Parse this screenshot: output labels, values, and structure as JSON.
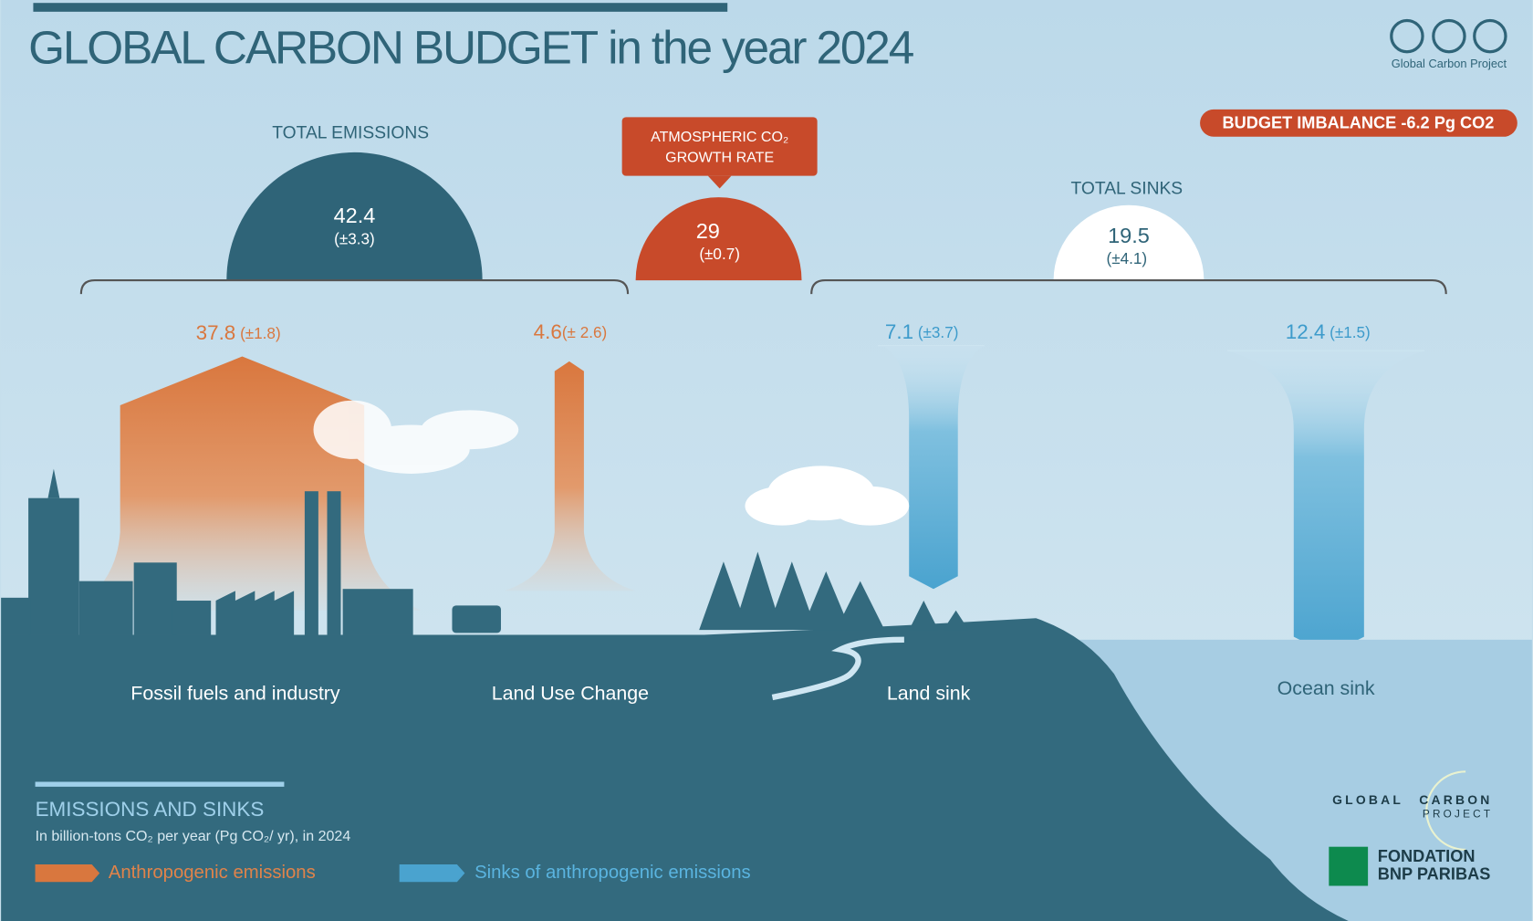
{
  "header": {
    "title_main": "GLOBAL CARBON BUDGET",
    "title_rest": "in the year 2024",
    "credit": "Global Carbon Project"
  },
  "budget_imbalance": "BUDGET IMBALANCE -6.2 Pg CO2",
  "totals": {
    "emissions": {
      "label": "TOTAL EMISSIONS",
      "value": 42.4,
      "uncertainty": "(±3.3)"
    },
    "atmospheric": {
      "label_line1": "ATMOSPHERIC CO₂",
      "label_line2": "GROWTH RATE",
      "value": 29,
      "uncertainty": "(±0.7)"
    },
    "sinks": {
      "label": "TOTAL SINKS",
      "value": 19.5,
      "uncertainty": "(±4.1)"
    }
  },
  "flows": [
    {
      "value": 37.8,
      "uncertainty": "(±1.8)",
      "label": "Fossil fuels and industry"
    },
    {
      "value": 4.6,
      "uncertainty": "(± 2.6)",
      "label": "Land Use Change"
    },
    {
      "value": 7.1,
      "uncertainty": "(±3.7)",
      "label": "Land sink"
    },
    {
      "value": 12.4,
      "uncertainty": "(±1.5)",
      "label": "Ocean sink"
    }
  ],
  "legend": {
    "title": "EMISSIONS AND SINKS",
    "subtitle": "In billion-tons CO₂ per year (Pg CO₂/ yr), in 2024",
    "items": [
      "Anthropogenic emissions",
      "Sinks of anthropogenic emissions"
    ]
  },
  "logos": {
    "gcp_line1": "GLOBAL",
    "gcp_line2": "CARBON",
    "gcp_line3": "PROJECT",
    "bnp_line1": "FONDATION",
    "bnp_line2": "BNP PARIBAS"
  }
}
